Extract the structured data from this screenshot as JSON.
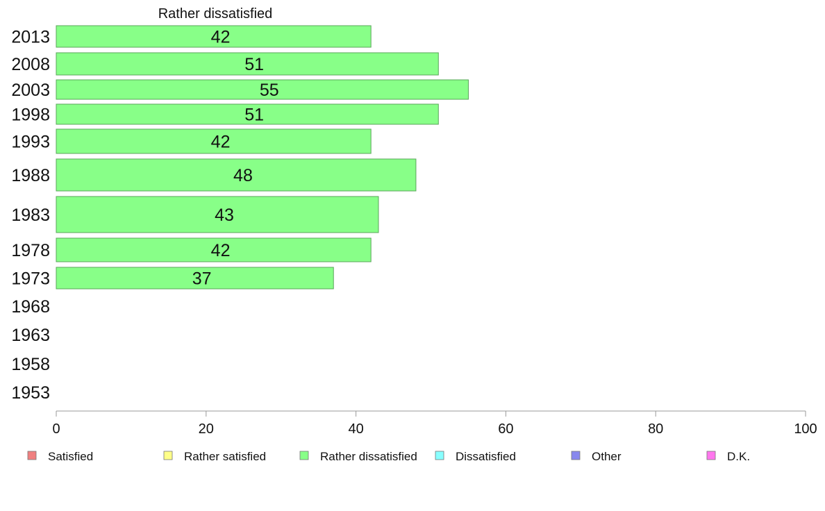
{
  "chart_data": {
    "type": "bar",
    "orientation": "horizontal",
    "title": "Rather dissatisfied",
    "categories": [
      "2013",
      "2008",
      "2003",
      "1998",
      "1993",
      "1988",
      "1983",
      "1978",
      "1973",
      "1968",
      "1963",
      "1958",
      "1953"
    ],
    "series": [
      {
        "name": "Rather dissatisfied",
        "values": [
          42,
          51,
          55,
          51,
          42,
          48,
          43,
          42,
          37,
          null,
          null,
          null,
          null
        ],
        "color": "#88ff88"
      }
    ],
    "xlim": [
      0,
      100
    ],
    "xticks": [
      0,
      20,
      40,
      60,
      80,
      100
    ],
    "grid": false,
    "legend": {
      "placement": "bottom",
      "entries": [
        {
          "label": "Satisfied",
          "color": "#f08080"
        },
        {
          "label": "Rather satisfied",
          "color": "#ffff88"
        },
        {
          "label": "Rather dissatisfied",
          "color": "#88ff88"
        },
        {
          "label": "Dissatisfied",
          "color": "#88ffff"
        },
        {
          "label": "Other",
          "color": "#8888ee"
        },
        {
          "label": "D.K.",
          "color": "#ff77ee"
        }
      ]
    }
  }
}
